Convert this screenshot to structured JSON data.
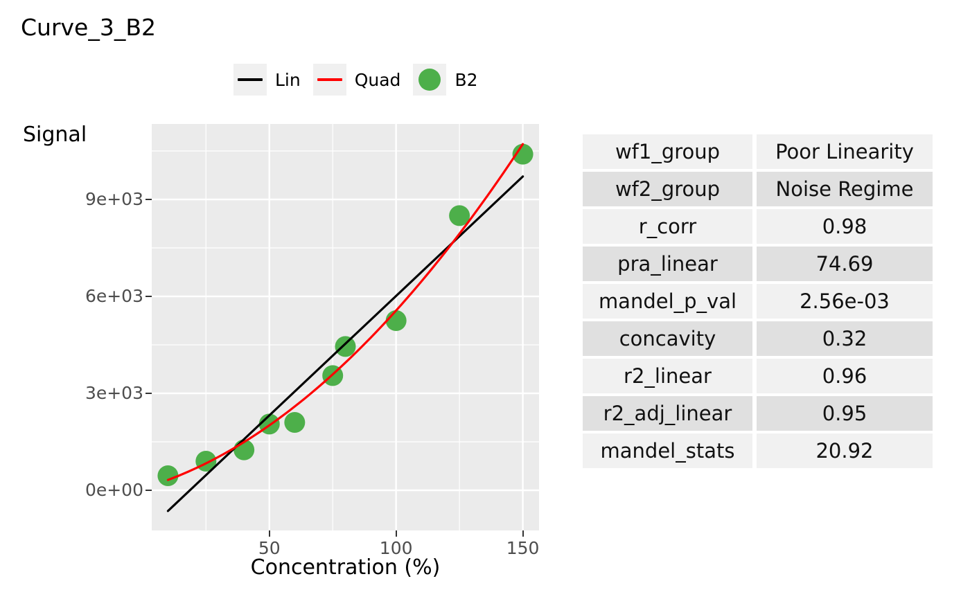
{
  "title": "Curve_3_B2",
  "legend": {
    "items": [
      {
        "label": "Lin",
        "swatch": "line-swatch",
        "color": "#000000"
      },
      {
        "label": "Quad",
        "swatch": "line-swatch",
        "color": "#FF0000"
      },
      {
        "label": "B2",
        "swatch": "point-swatch",
        "color": "#4DAF4A"
      }
    ],
    "key_background": "#F0F0F0"
  },
  "chart_data": {
    "type": "scatter",
    "title": "Curve_3_B2",
    "xlabel": "Concentration (%)",
    "ylabel": "Signal",
    "xlim": [
      3.6,
      156.4
    ],
    "ylim": [
      -1243,
      11336
    ],
    "x_ticks": {
      "values": [
        50,
        100,
        150
      ],
      "labels": [
        "50",
        "100",
        "150"
      ]
    },
    "y_ticks": {
      "values": [
        0,
        3000,
        6000,
        9000
      ],
      "labels": [
        "0e+00",
        "3e+03",
        "6e+03",
        "9e+03"
      ]
    },
    "x_minor": [
      25,
      75,
      125
    ],
    "y_minor": [
      1500,
      4500,
      7500,
      10500
    ],
    "grid": true,
    "legend_position": "top",
    "panel_background": "#EBEBEB",
    "grid_color": "#FFFFFF",
    "tick_text_color": "#4D4D4D",
    "series": [
      {
        "name": "B2",
        "type": "scatter",
        "color": "#4DAF4A",
        "point_radius": 15,
        "points": [
          [
            10,
            450
          ],
          [
            25,
            900
          ],
          [
            40,
            1250
          ],
          [
            50,
            2050
          ],
          [
            60,
            2100
          ],
          [
            75,
            3550
          ],
          [
            80,
            4450
          ],
          [
            100,
            5250
          ],
          [
            125,
            8500
          ],
          [
            150,
            10400
          ]
        ]
      },
      {
        "name": "Lin",
        "type": "line",
        "color": "#000000",
        "width": 3.2,
        "points": [
          [
            10,
            -640
          ],
          [
            150,
            9710
          ]
        ]
      },
      {
        "name": "Quad",
        "type": "quad",
        "color": "#FF0000",
        "width": 3.2,
        "coeffs": [
          57.6,
          23.04,
          0.32
        ],
        "x_range": [
          10,
          150
        ]
      }
    ]
  },
  "table": {
    "row_colors": {
      "light": "#F1F1F1",
      "dark": "#E0E0E0"
    },
    "rows": [
      {
        "label": "wf1_group",
        "value": "Poor Linearity"
      },
      {
        "label": "wf2_group",
        "value": "Noise Regime"
      },
      {
        "label": "r_corr",
        "value": "0.98"
      },
      {
        "label": "pra_linear",
        "value": "74.69"
      },
      {
        "label": "mandel_p_val",
        "value": "2.56e-03"
      },
      {
        "label": "concavity",
        "value": "0.32"
      },
      {
        "label": "r2_linear",
        "value": "0.96"
      },
      {
        "label": "r2_adj_linear",
        "value": "0.95"
      },
      {
        "label": "mandel_stats",
        "value": "20.92"
      }
    ]
  }
}
